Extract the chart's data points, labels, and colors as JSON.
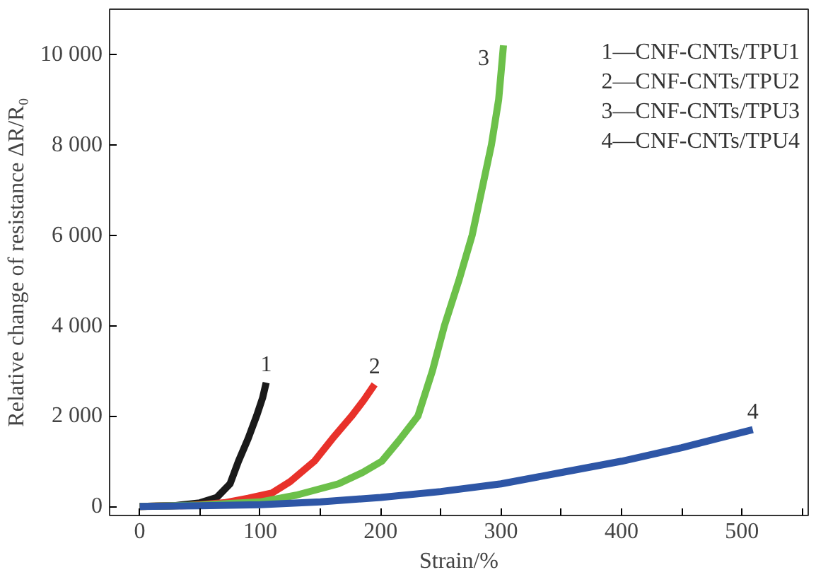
{
  "chart_data": {
    "type": "line",
    "xlabel": "Strain/%",
    "ylabel": "Relative change of resistance ΔR/R₀",
    "xlim": [
      -25,
      555
    ],
    "ylim": [
      -200,
      11000
    ],
    "xticks": [
      0,
      {
        "value": 50,
        "label": null
      },
      100,
      {
        "value": 150,
        "label": null
      },
      200,
      {
        "value": 250,
        "label": null
      },
      300,
      {
        "value": 350,
        "label": null
      },
      400,
      {
        "value": 450,
        "label": null
      },
      500,
      {
        "value": 550,
        "label": null
      }
    ],
    "yticks": [
      0,
      {
        "value": 2000,
        "label": "2 000"
      },
      {
        "value": 4000,
        "label": "4 000"
      },
      {
        "value": 6000,
        "label": "6 000"
      },
      {
        "value": 8000,
        "label": "8 000"
      },
      {
        "value": 10000,
        "label": "10 000"
      }
    ],
    "grid": false,
    "legend": false,
    "marker": "none",
    "line_style": "solid",
    "series": [
      {
        "name": "1",
        "color": "#1a1a1a",
        "x": [
          0,
          30,
          50,
          64,
          75,
          82,
          90,
          97,
          102,
          105
        ],
        "values": [
          0,
          20,
          80,
          200,
          500,
          1000,
          1500,
          2000,
          2400,
          2740
        ]
      },
      {
        "name": "2",
        "color": "#e8312a",
        "x": [
          0,
          40,
          70,
          90,
          110,
          125,
          145,
          160,
          176,
          186,
          195
        ],
        "values": [
          0,
          20,
          80,
          180,
          300,
          550,
          1000,
          1500,
          2000,
          2350,
          2700
        ]
      },
      {
        "name": "3",
        "color": "#6cc04a",
        "x": [
          0,
          50,
          100,
          130,
          165,
          185,
          201,
          215,
          231,
          243,
          253,
          265,
          276,
          284,
          292,
          298,
          302
        ],
        "values": [
          0,
          30,
          100,
          250,
          500,
          750,
          1000,
          1450,
          2000,
          3000,
          4000,
          5000,
          6000,
          7000,
          8000,
          9000,
          10200
        ]
      },
      {
        "name": "4",
        "color": "#2e56a6",
        "x": [
          0,
          50,
          100,
          150,
          200,
          250,
          300,
          350,
          400,
          450,
          509
        ],
        "values": [
          0,
          15,
          40,
          100,
          200,
          330,
          500,
          750,
          1000,
          1300,
          1700
        ]
      }
    ],
    "annotations": [
      "1—CNF-CNTs/TPU1",
      "2—CNF-CNTs/TPU2",
      "3—CNF-CNTs/TPU3",
      "4—CNF-CNTs/TPU4"
    ]
  }
}
